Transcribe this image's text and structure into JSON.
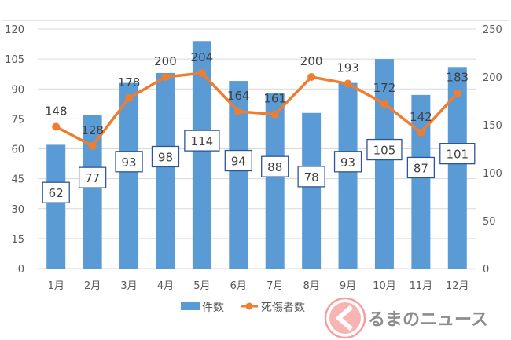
{
  "chart_data": {
    "type": "bar+line",
    "categories": [
      "1月",
      "2月",
      "3月",
      "4月",
      "5月",
      "6月",
      "7月",
      "8月",
      "9月",
      "10月",
      "11月",
      "12月"
    ],
    "series": [
      {
        "name": "件数",
        "type": "bar",
        "axis": "left",
        "color": "#5B9BD5",
        "values": [
          62,
          77,
          93,
          98,
          114,
          94,
          88,
          78,
          93,
          105,
          87,
          101
        ]
      },
      {
        "name": "死傷者数",
        "type": "line",
        "axis": "right",
        "color": "#ED7D31",
        "values": [
          148,
          128,
          178,
          200,
          204,
          164,
          161,
          200,
          193,
          172,
          142,
          183
        ]
      }
    ],
    "y_left": {
      "range": [
        0,
        120
      ],
      "ticks": [
        "0",
        "15",
        "30",
        "45",
        "60",
        "75",
        "90",
        "105",
        "120"
      ]
    },
    "y_right": {
      "range": [
        0,
        250
      ],
      "ticks": [
        "0",
        "50",
        "100",
        "150",
        "200",
        "250"
      ]
    },
    "grid": true,
    "legend": "bottom"
  },
  "watermark": {
    "text": "くるまのニュース",
    "colors": {
      "circle": "#f08080",
      "text": "#8c8c8c"
    }
  }
}
